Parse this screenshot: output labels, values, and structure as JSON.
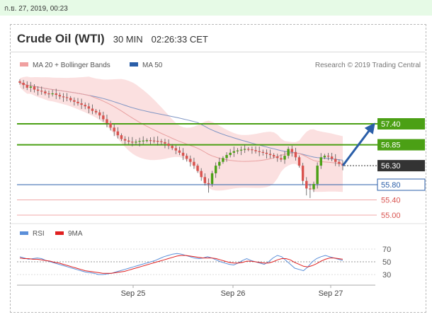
{
  "datetime": "ก.ย. 27, 2019, 00:23",
  "header": {
    "title": "Crude Oil (WTI)",
    "timeframe": "30 MIN",
    "time": "02:26:33 CET"
  },
  "legend": {
    "ma20_label": "MA 20 + Bollinger Bands",
    "ma50_label": "MA 50",
    "credit": "Research © 2019 Trading Central",
    "rsi_label": "RSI",
    "ma9_label": "9MA"
  },
  "colors": {
    "green": "#4ba015",
    "blue": "#2a5ea8",
    "red": "#d9534f",
    "candle_up": "#4ba015",
    "candle_down": "#d9534f",
    "band": "#f9d6d6",
    "ma50": "#7f95c4",
    "ma20": "#e9a0a0",
    "current_tag": "#333333",
    "rsi_line": "#5b8fd9",
    "ma9_line": "#e02020"
  },
  "chart_data": [
    {
      "type": "candlestick",
      "x_ticks": [
        "Sep 25",
        "Sep 26",
        "Sep 27"
      ],
      "ylim": [
        54.8,
        58.6
      ],
      "current_price": 56.3,
      "levels": [
        {
          "value": 57.4,
          "label": "57.40",
          "kind": "resistance"
        },
        {
          "value": 56.85,
          "label": "56.85",
          "kind": "resistance"
        },
        {
          "value": 56.3,
          "label": "56.30",
          "kind": "current"
        },
        {
          "value": 55.8,
          "label": "55.80",
          "kind": "pivot"
        },
        {
          "value": 55.4,
          "label": "55.40",
          "kind": "support"
        },
        {
          "value": 55.0,
          "label": "55.00",
          "kind": "support"
        }
      ],
      "close": [
        58.48,
        58.42,
        58.35,
        58.38,
        58.3,
        58.27,
        58.25,
        58.2,
        58.18,
        58.2,
        58.16,
        58.12,
        58.1,
        58.08,
        58.02,
        57.98,
        57.94,
        57.9,
        57.86,
        57.8,
        57.74,
        57.7,
        57.62,
        57.52,
        57.42,
        57.3,
        57.2,
        57.1,
        57.0,
        56.96,
        56.93,
        56.92,
        56.93,
        56.95,
        56.96,
        56.97,
        56.96,
        56.95,
        56.94,
        56.92,
        56.88,
        56.82,
        56.76,
        56.7,
        56.64,
        56.56,
        56.48,
        56.4,
        56.3,
        56.16,
        56.0,
        55.84,
        55.82,
        56.1,
        56.3,
        56.4,
        56.5,
        56.58,
        56.64,
        56.68,
        56.7,
        56.72,
        56.74,
        56.73,
        56.71,
        56.68,
        56.66,
        56.64,
        56.61,
        56.58,
        56.54,
        56.5,
        56.46,
        56.56,
        56.74,
        56.66,
        56.52,
        56.3,
        55.9,
        55.7,
        55.68,
        55.82,
        56.3,
        56.52,
        56.56,
        56.54,
        56.48,
        56.4,
        56.35,
        56.3
      ],
      "forecast_target": 57.4
    },
    {
      "type": "line",
      "series": [
        {
          "name": "RSI",
          "values": [
            58,
            56,
            54,
            55,
            56,
            55,
            52,
            50,
            48,
            46,
            44,
            42,
            40,
            38,
            36,
            34,
            33,
            32,
            30,
            30,
            31,
            32,
            34,
            36,
            38,
            40,
            42,
            44,
            46,
            48,
            50,
            52,
            55,
            58,
            60,
            62,
            63,
            62,
            60,
            58,
            56,
            55,
            56,
            58,
            56,
            53,
            50,
            48,
            46,
            45,
            48,
            52,
            55,
            52,
            50,
            48,
            46,
            50,
            56,
            60,
            58,
            52,
            46,
            40,
            38,
            36,
            42,
            50,
            55,
            58,
            60,
            58,
            56,
            54,
            52
          ]
        },
        {
          "name": "9MA",
          "values": [
            56,
            55,
            55,
            54,
            54,
            53,
            52,
            51,
            49,
            48,
            46,
            44,
            42,
            40,
            38,
            36,
            35,
            34,
            33,
            32,
            32,
            32,
            33,
            34,
            35,
            37,
            39,
            41,
            43,
            45,
            47,
            49,
            51,
            53,
            55,
            57,
            59,
            60,
            60,
            59,
            58,
            57,
            56,
            56,
            56,
            55,
            53,
            51,
            49,
            48,
            48,
            49,
            51,
            51,
            50,
            49,
            48,
            48,
            50,
            53,
            55,
            55,
            53,
            49,
            46,
            43,
            42,
            44,
            47,
            51,
            54,
            56,
            56,
            55,
            54
          ]
        }
      ],
      "y_ticks": [
        30,
        50,
        70
      ],
      "reference_line": 50
    }
  ]
}
